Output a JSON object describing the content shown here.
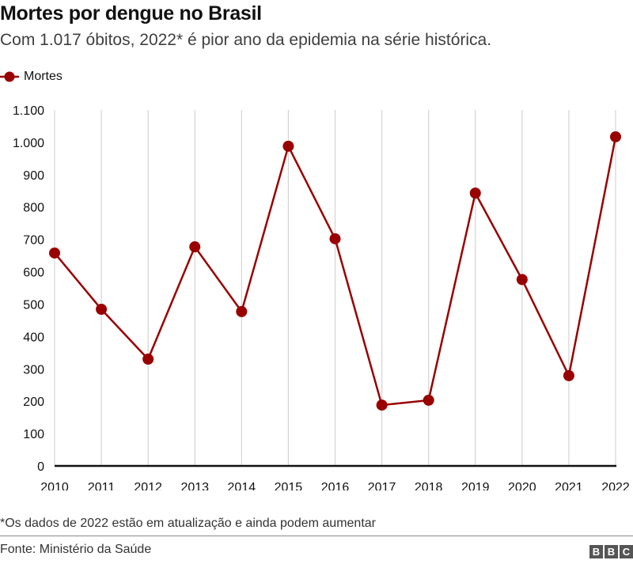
{
  "header": {
    "title": "Mortes por dengue no Brasil",
    "subtitle": "Com 1.017 óbitos, 2022* é pior ano da epidemia na série histórica."
  },
  "legend": {
    "label": "Mortes",
    "icon": "line-dot-marker-icon"
  },
  "footer": {
    "footnote": "*Os dados de 2022 estão em atualização e ainda podem aumentar",
    "source": "Fonte: Ministério da Saúde",
    "logo_letters": [
      "B",
      "B",
      "C"
    ]
  },
  "colors": {
    "series": "#990000",
    "grid": "#d4d4d4",
    "axis": "#111111",
    "logo": "#555555"
  },
  "chart_data": {
    "type": "line",
    "title": "Mortes por dengue no Brasil",
    "subtitle": "Com 1.017 óbitos, 2022* é pior ano da epidemia na série histórica.",
    "xlabel": "",
    "ylabel": "",
    "x": [
      "2010",
      "2011",
      "2012",
      "2013",
      "2014",
      "2015",
      "2016",
      "2017",
      "2018",
      "2019",
      "2020",
      "2021",
      "2022"
    ],
    "series": [
      {
        "name": "Mortes",
        "values": [
          658,
          484,
          330,
          677,
          477,
          988,
          702,
          188,
          203,
          843,
          576,
          279,
          1017
        ]
      }
    ],
    "ylim": [
      0,
      1100
    ],
    "yticks": [
      0,
      100,
      200,
      300,
      400,
      500,
      600,
      700,
      800,
      900,
      1000,
      1100
    ],
    "ytick_labels": [
      "0",
      "100",
      "200",
      "300",
      "400",
      "500",
      "600",
      "700",
      "800",
      "900",
      "1.000",
      "1.100"
    ],
    "grid": "vertical",
    "legend": "top-left"
  }
}
